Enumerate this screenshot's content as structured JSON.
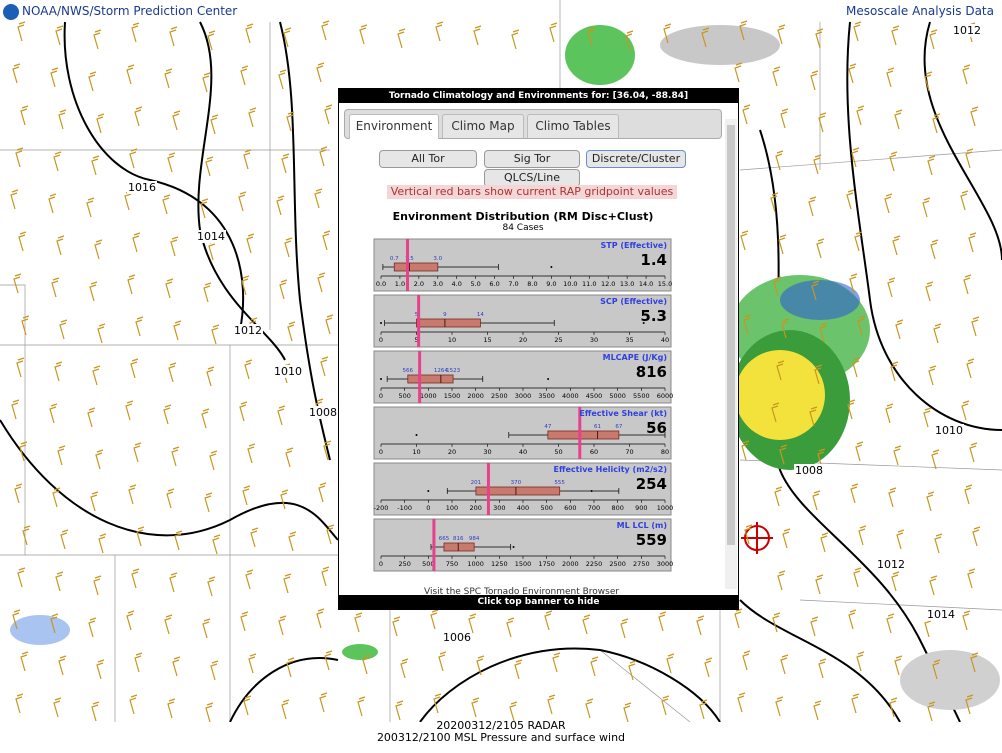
{
  "header": {
    "left": "NOAA/NWS/Storm Prediction Center",
    "right": "Mesoscale Analysis Data"
  },
  "map": {
    "isobar_labels": [
      "1012",
      "1016",
      "1014",
      "1012",
      "1010",
      "1008",
      "1010",
      "1008",
      "1012",
      "1014",
      "1006"
    ]
  },
  "footer": {
    "radar": "20200312/2105 RADAR",
    "analysis": "200312/2100 MSL Pressure and surface wind"
  },
  "popup": {
    "title": "Tornado Climatology and Environments for: [36.04, -88.84]",
    "tabs": [
      "Environment",
      "Climo Map",
      "Climo Tables"
    ],
    "buttons": [
      "All Tor",
      "Sig Tor",
      "Discrete/Cluster",
      "QLCS/Line"
    ],
    "note": "Vertical red bars show current RAP gridpoint values",
    "dist_title": "Environment Distribution (RM Disc+Clust)",
    "cases": "84 Cases",
    "panels": [
      {
        "name": "STP (Effective)",
        "current": 1.4,
        "box": [
          0.7,
          1.5,
          3.0
        ],
        "box_labels": [
          "0.7",
          "1.5",
          "3.0"
        ],
        "whiskers": [
          0.1,
          6.2
        ],
        "outliers": [
          9.0
        ],
        "xlim": [
          0,
          15
        ],
        "xticks": [
          {
            "value": 0,
            "label": "0.0"
          },
          {
            "value": 1,
            "label": "1.0"
          },
          {
            "value": 2,
            "label": "2.0"
          },
          {
            "value": 3,
            "label": "3.0"
          },
          {
            "value": 4,
            "label": "4.0"
          },
          {
            "value": 5,
            "label": "5.0"
          },
          {
            "value": 6,
            "label": "6.0"
          },
          {
            "value": 7,
            "label": "7.0"
          },
          {
            "value": 8,
            "label": "8.0"
          },
          {
            "value": 9,
            "label": "9.0"
          },
          {
            "value": 10,
            "label": "10.0"
          },
          {
            "value": 11,
            "label": "11.0"
          },
          {
            "value": 12,
            "label": "12.0"
          },
          {
            "value": 13,
            "label": "13.0"
          },
          {
            "value": 14,
            "label": "14.0"
          },
          {
            "value": 15,
            "label": "15.0"
          }
        ]
      },
      {
        "name": "SCP (Effective)",
        "current": 5.3,
        "box": [
          5,
          9,
          14
        ],
        "whiskers": [
          0.5,
          24.4
        ],
        "outliers": [
          0,
          37
        ],
        "xlim": [
          0,
          40
        ],
        "xticks": [
          0,
          5,
          10,
          15,
          20,
          25,
          30,
          35,
          40
        ]
      },
      {
        "name": "MLCAPE (J/Kg)",
        "current": 816,
        "box": [
          566,
          1264,
          1523
        ],
        "whiskers": [
          130,
          2150
        ],
        "outliers": [
          0,
          3530
        ],
        "xlim": [
          0,
          6000
        ],
        "xticks": [
          0,
          500,
          1000,
          1500,
          2000,
          2500,
          3000,
          3500,
          4000,
          4500,
          5000,
          5500,
          6000
        ]
      },
      {
        "name": "Effective Shear (kt)",
        "current": 56,
        "box": [
          47,
          61,
          67
        ],
        "whiskers": [
          36,
          80
        ],
        "outliers": [
          10
        ],
        "xlim": [
          0,
          80
        ],
        "xticks": [
          0,
          10,
          20,
          30,
          40,
          50,
          60,
          70,
          80
        ]
      },
      {
        "name": "Effective Helicity (m2/s2)",
        "current": 254,
        "box": [
          201,
          370,
          555
        ],
        "whiskers": [
          80,
          805
        ],
        "outliers": [
          0,
          690
        ],
        "xlim": [
          -200,
          1000
        ],
        "xticks": [
          -200,
          -100,
          0,
          100,
          200,
          300,
          400,
          500,
          600,
          700,
          800,
          900,
          1000
        ]
      },
      {
        "name": "ML LCL (m)",
        "current": 559,
        "box": [
          665,
          816,
          984
        ],
        "whiskers": [
          528,
          1370
        ],
        "outliers": [
          1400
        ],
        "xlim": [
          0,
          3000
        ],
        "xticks": [
          0,
          250,
          500,
          750,
          1000,
          1250,
          1500,
          1750,
          2000,
          2250,
          2500,
          2750,
          3000
        ]
      }
    ],
    "browser_link": "Visit the SPC Tornado Environment Browser",
    "hide": "Click top banner to hide"
  }
}
